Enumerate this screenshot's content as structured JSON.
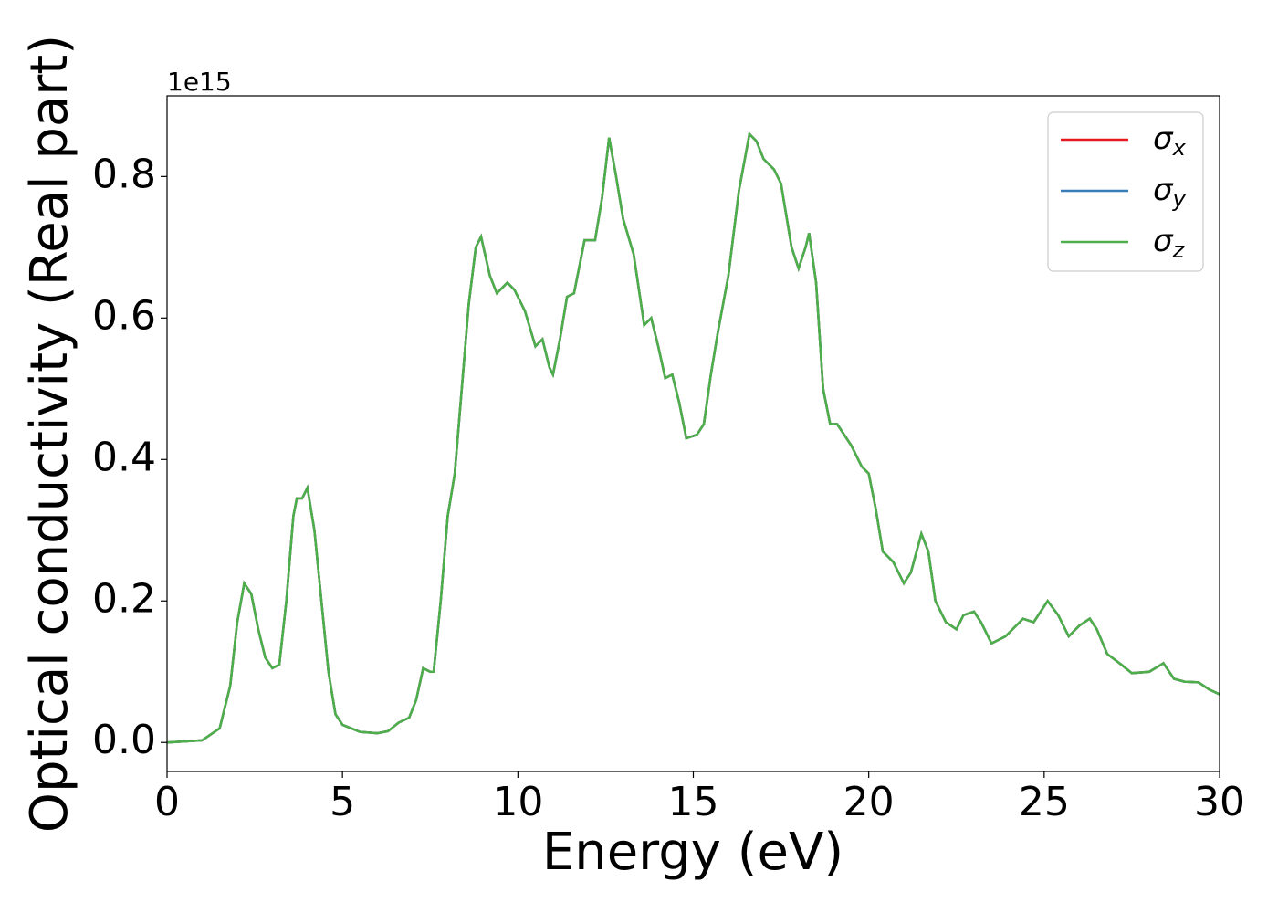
{
  "chart_data": {
    "type": "line",
    "xlabel": "Energy (eV)",
    "ylabel": "Optical conductivity (Real part)",
    "y_offset": "1e15",
    "x": [
      0,
      1,
      1.5,
      1.8,
      2.0,
      2.2,
      2.4,
      2.6,
      2.8,
      3.0,
      3.2,
      3.4,
      3.6,
      3.7,
      3.85,
      4.0,
      4.2,
      4.4,
      4.6,
      4.8,
      5.0,
      5.5,
      6.0,
      6.3,
      6.6,
      6.9,
      7.1,
      7.3,
      7.5,
      7.6,
      7.8,
      8.0,
      8.2,
      8.4,
      8.6,
      8.8,
      8.95,
      9.2,
      9.4,
      9.7,
      9.9,
      10.2,
      10.5,
      10.7,
      10.9,
      11.0,
      11.2,
      11.4,
      11.6,
      11.9,
      12.2,
      12.4,
      12.6,
      12.8,
      13.0,
      13.3,
      13.6,
      13.8,
      14.0,
      14.2,
      14.4,
      14.6,
      14.8,
      15.1,
      15.3,
      15.5,
      15.7,
      16.0,
      16.3,
      16.6,
      16.8,
      17.0,
      17.3,
      17.5,
      17.8,
      18.0,
      18.2,
      18.3,
      18.5,
      18.7,
      18.9,
      19.1,
      19.5,
      19.8,
      20.0,
      20.2,
      20.4,
      20.7,
      21.0,
      21.2,
      21.5,
      21.7,
      21.9,
      22.2,
      22.5,
      22.7,
      23.0,
      23.2,
      23.5,
      23.9,
      24.1,
      24.4,
      24.7,
      25.1,
      25.4,
      25.7,
      26.0,
      26.3,
      26.5,
      26.8,
      27.2,
      27.5,
      28.0,
      28.4,
      28.7,
      29.0,
      29.4,
      29.7,
      30.0
    ],
    "series": [
      {
        "name": "σx",
        "color": "#e41a1c",
        "values": [
          0,
          0.003,
          0.02,
          0.08,
          0.17,
          0.225,
          0.21,
          0.16,
          0.12,
          0.105,
          0.11,
          0.2,
          0.32,
          0.345,
          0.345,
          0.36,
          0.3,
          0.2,
          0.1,
          0.04,
          0.025,
          0.015,
          0.013,
          0.016,
          0.028,
          0.035,
          0.06,
          0.105,
          0.1,
          0.1,
          0.2,
          0.32,
          0.38,
          0.5,
          0.62,
          0.7,
          0.715,
          0.66,
          0.635,
          0.65,
          0.64,
          0.61,
          0.56,
          0.57,
          0.53,
          0.52,
          0.57,
          0.63,
          0.635,
          0.71,
          0.71,
          0.77,
          0.855,
          0.8,
          0.74,
          0.69,
          0.59,
          0.6,
          0.56,
          0.515,
          0.52,
          0.48,
          0.43,
          0.435,
          0.45,
          0.52,
          0.58,
          0.66,
          0.78,
          0.86,
          0.85,
          0.825,
          0.81,
          0.79,
          0.7,
          0.67,
          0.7,
          0.72,
          0.65,
          0.5,
          0.45,
          0.45,
          0.42,
          0.39,
          0.38,
          0.33,
          0.27,
          0.255,
          0.225,
          0.24,
          0.295,
          0.27,
          0.2,
          0.17,
          0.16,
          0.18,
          0.185,
          0.17,
          0.14,
          0.15,
          0.16,
          0.175,
          0.17,
          0.2,
          0.18,
          0.15,
          0.165,
          0.175,
          0.16,
          0.125,
          0.11,
          0.098,
          0.1,
          0.112,
          0.09,
          0.086,
          0.085,
          0.075,
          0.068
        ]
      },
      {
        "name": "σy",
        "color": "#377eb8",
        "values": [
          0,
          0.003,
          0.02,
          0.08,
          0.17,
          0.225,
          0.21,
          0.16,
          0.12,
          0.105,
          0.11,
          0.2,
          0.32,
          0.345,
          0.345,
          0.36,
          0.3,
          0.2,
          0.1,
          0.04,
          0.025,
          0.015,
          0.013,
          0.016,
          0.028,
          0.035,
          0.06,
          0.105,
          0.1,
          0.1,
          0.2,
          0.32,
          0.38,
          0.5,
          0.62,
          0.7,
          0.715,
          0.66,
          0.635,
          0.65,
          0.64,
          0.61,
          0.56,
          0.57,
          0.53,
          0.52,
          0.57,
          0.63,
          0.635,
          0.71,
          0.71,
          0.77,
          0.855,
          0.8,
          0.74,
          0.69,
          0.59,
          0.6,
          0.56,
          0.515,
          0.52,
          0.48,
          0.43,
          0.435,
          0.45,
          0.52,
          0.58,
          0.66,
          0.78,
          0.86,
          0.85,
          0.825,
          0.81,
          0.79,
          0.7,
          0.67,
          0.7,
          0.72,
          0.65,
          0.5,
          0.45,
          0.45,
          0.42,
          0.39,
          0.38,
          0.33,
          0.27,
          0.255,
          0.225,
          0.24,
          0.295,
          0.27,
          0.2,
          0.17,
          0.16,
          0.18,
          0.185,
          0.17,
          0.14,
          0.15,
          0.16,
          0.175,
          0.17,
          0.2,
          0.18,
          0.15,
          0.165,
          0.175,
          0.16,
          0.125,
          0.11,
          0.098,
          0.1,
          0.112,
          0.09,
          0.086,
          0.085,
          0.075,
          0.068
        ]
      },
      {
        "name": "σz",
        "color": "#4daf4a",
        "values": [
          0,
          0.003,
          0.02,
          0.08,
          0.17,
          0.225,
          0.21,
          0.16,
          0.12,
          0.105,
          0.11,
          0.2,
          0.32,
          0.345,
          0.345,
          0.36,
          0.3,
          0.2,
          0.1,
          0.04,
          0.025,
          0.015,
          0.013,
          0.016,
          0.028,
          0.035,
          0.06,
          0.105,
          0.1,
          0.1,
          0.2,
          0.32,
          0.38,
          0.5,
          0.62,
          0.7,
          0.715,
          0.66,
          0.635,
          0.65,
          0.64,
          0.61,
          0.56,
          0.57,
          0.53,
          0.52,
          0.57,
          0.63,
          0.635,
          0.71,
          0.71,
          0.77,
          0.855,
          0.8,
          0.74,
          0.69,
          0.59,
          0.6,
          0.56,
          0.515,
          0.52,
          0.48,
          0.43,
          0.435,
          0.45,
          0.52,
          0.58,
          0.66,
          0.78,
          0.86,
          0.85,
          0.825,
          0.81,
          0.79,
          0.7,
          0.67,
          0.7,
          0.72,
          0.65,
          0.5,
          0.45,
          0.45,
          0.42,
          0.39,
          0.38,
          0.33,
          0.27,
          0.255,
          0.225,
          0.24,
          0.295,
          0.27,
          0.2,
          0.17,
          0.16,
          0.18,
          0.185,
          0.17,
          0.14,
          0.15,
          0.16,
          0.175,
          0.17,
          0.2,
          0.18,
          0.15,
          0.165,
          0.175,
          0.16,
          0.125,
          0.11,
          0.098,
          0.1,
          0.112,
          0.09,
          0.086,
          0.085,
          0.075,
          0.068
        ]
      }
    ],
    "xlim": [
      0,
      30
    ],
    "xticks": [
      0,
      5,
      10,
      15,
      20,
      25,
      30
    ],
    "ylim": [
      -0.041,
      0.914
    ],
    "yticks": [
      {
        "value": 0,
        "label": "0.0"
      },
      0.2,
      0.4,
      0.6,
      0.8
    ],
    "legend": "upper right"
  }
}
